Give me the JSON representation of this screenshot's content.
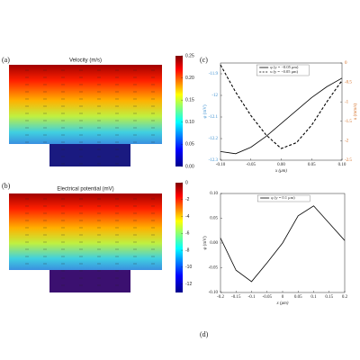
{
  "chart_data": [
    {
      "type": "heatmap",
      "label": "(a)",
      "title": "Velocity (m/s)",
      "colormap": "jet",
      "clim": [
        0,
        0.25
      ],
      "cticks": [
        0.25,
        {
          "value": 0.2,
          "label": "0.20"
        },
        {
          "value": 0.15,
          "label": "0.15"
        },
        {
          "value": 0.1,
          "label": "0.10"
        },
        {
          "value": 0.05,
          "label": "0.05"
        },
        {
          "value": 0,
          "label": "0.00"
        }
      ]
    },
    {
      "type": "heatmap",
      "label": "(b)",
      "title": "Electrical potential (mV)",
      "colormap": "plasma",
      "clim": [
        -13,
        0
      ],
      "cticks": [
        0,
        -2,
        -4,
        -6,
        -8,
        -10,
        -12
      ]
    },
    {
      "type": "line",
      "label": "(c)",
      "xlabel": "x (μm)",
      "ylabel": "φ (mV)",
      "y2label": "u (mm/s)",
      "ycolor": "#3a8fd0",
      "y2color": "#d2691e",
      "x": [
        -0.1,
        -0.075,
        -0.05,
        -0.025,
        0,
        0.025,
        0.05,
        0.075,
        0.1
      ],
      "series": [
        {
          "name": "φ (y = −0.05 μm)",
          "color": "#000000",
          "dash": false,
          "values": [
            -12.26,
            -12.27,
            -12.24,
            -12.19,
            -12.13,
            -12.07,
            -12.01,
            -11.96,
            -11.92
          ]
        },
        {
          "name": "u (y = −0.05 μm)",
          "color": "#000000",
          "dash": true,
          "axis": "y2",
          "values": [
            -0.05,
            -0.75,
            -1.35,
            -1.85,
            -2.2,
            -2.05,
            -1.6,
            -1.0,
            -0.45
          ]
        }
      ],
      "xlim": [
        -0.1,
        0.1
      ],
      "ylim": [
        -12.3,
        -11.85
      ],
      "y2lim": [
        -2.5,
        0
      ],
      "xticks": [
        {
          "value": -0.1,
          "label": "-0.10"
        },
        {
          "value": -0.05,
          "label": "-0.05"
        },
        {
          "value": 0,
          "label": "0.00"
        },
        {
          "value": 0.05,
          "label": "0.05"
        },
        {
          "value": 0.1,
          "label": "0.10"
        }
      ],
      "yticks": [
        -11.9,
        -12,
        -12.1,
        -12.2,
        -12.3
      ],
      "y2ticks": [
        0,
        -0.5,
        -1,
        -1.5,
        -2,
        -2.5
      ]
    },
    {
      "type": "line",
      "label": "(d)",
      "xlabel": "x (μm)",
      "ylabel": "φ (mV)",
      "x": [
        -0.2,
        -0.15,
        -0.1,
        -0.05,
        0,
        0.05,
        0.1,
        0.15,
        0.2
      ],
      "series": [
        {
          "name": "φ (y = 0.1 μm)",
          "color": "#000000",
          "dash": false,
          "values": [
            0.01,
            -0.055,
            -0.078,
            -0.04,
            0.0,
            0.055,
            0.075,
            0.04,
            0.005
          ]
        }
      ],
      "xlim": [
        -0.2,
        0.2
      ],
      "ylim": [
        -0.1,
        0.1
      ],
      "xticks": [
        -0.2,
        -0.15,
        -0.1,
        -0.05,
        0,
        0.05,
        0.1,
        0.15,
        0.2
      ],
      "yticks": [
        {
          "value": 0.1,
          "label": "0.10"
        },
        {
          "value": 0.05,
          "label": "0.05"
        },
        {
          "value": 0,
          "label": "0.00"
        },
        {
          "value": -0.05,
          "label": "-0.05"
        },
        {
          "value": -0.1,
          "label": "-0.10"
        }
      ]
    }
  ]
}
